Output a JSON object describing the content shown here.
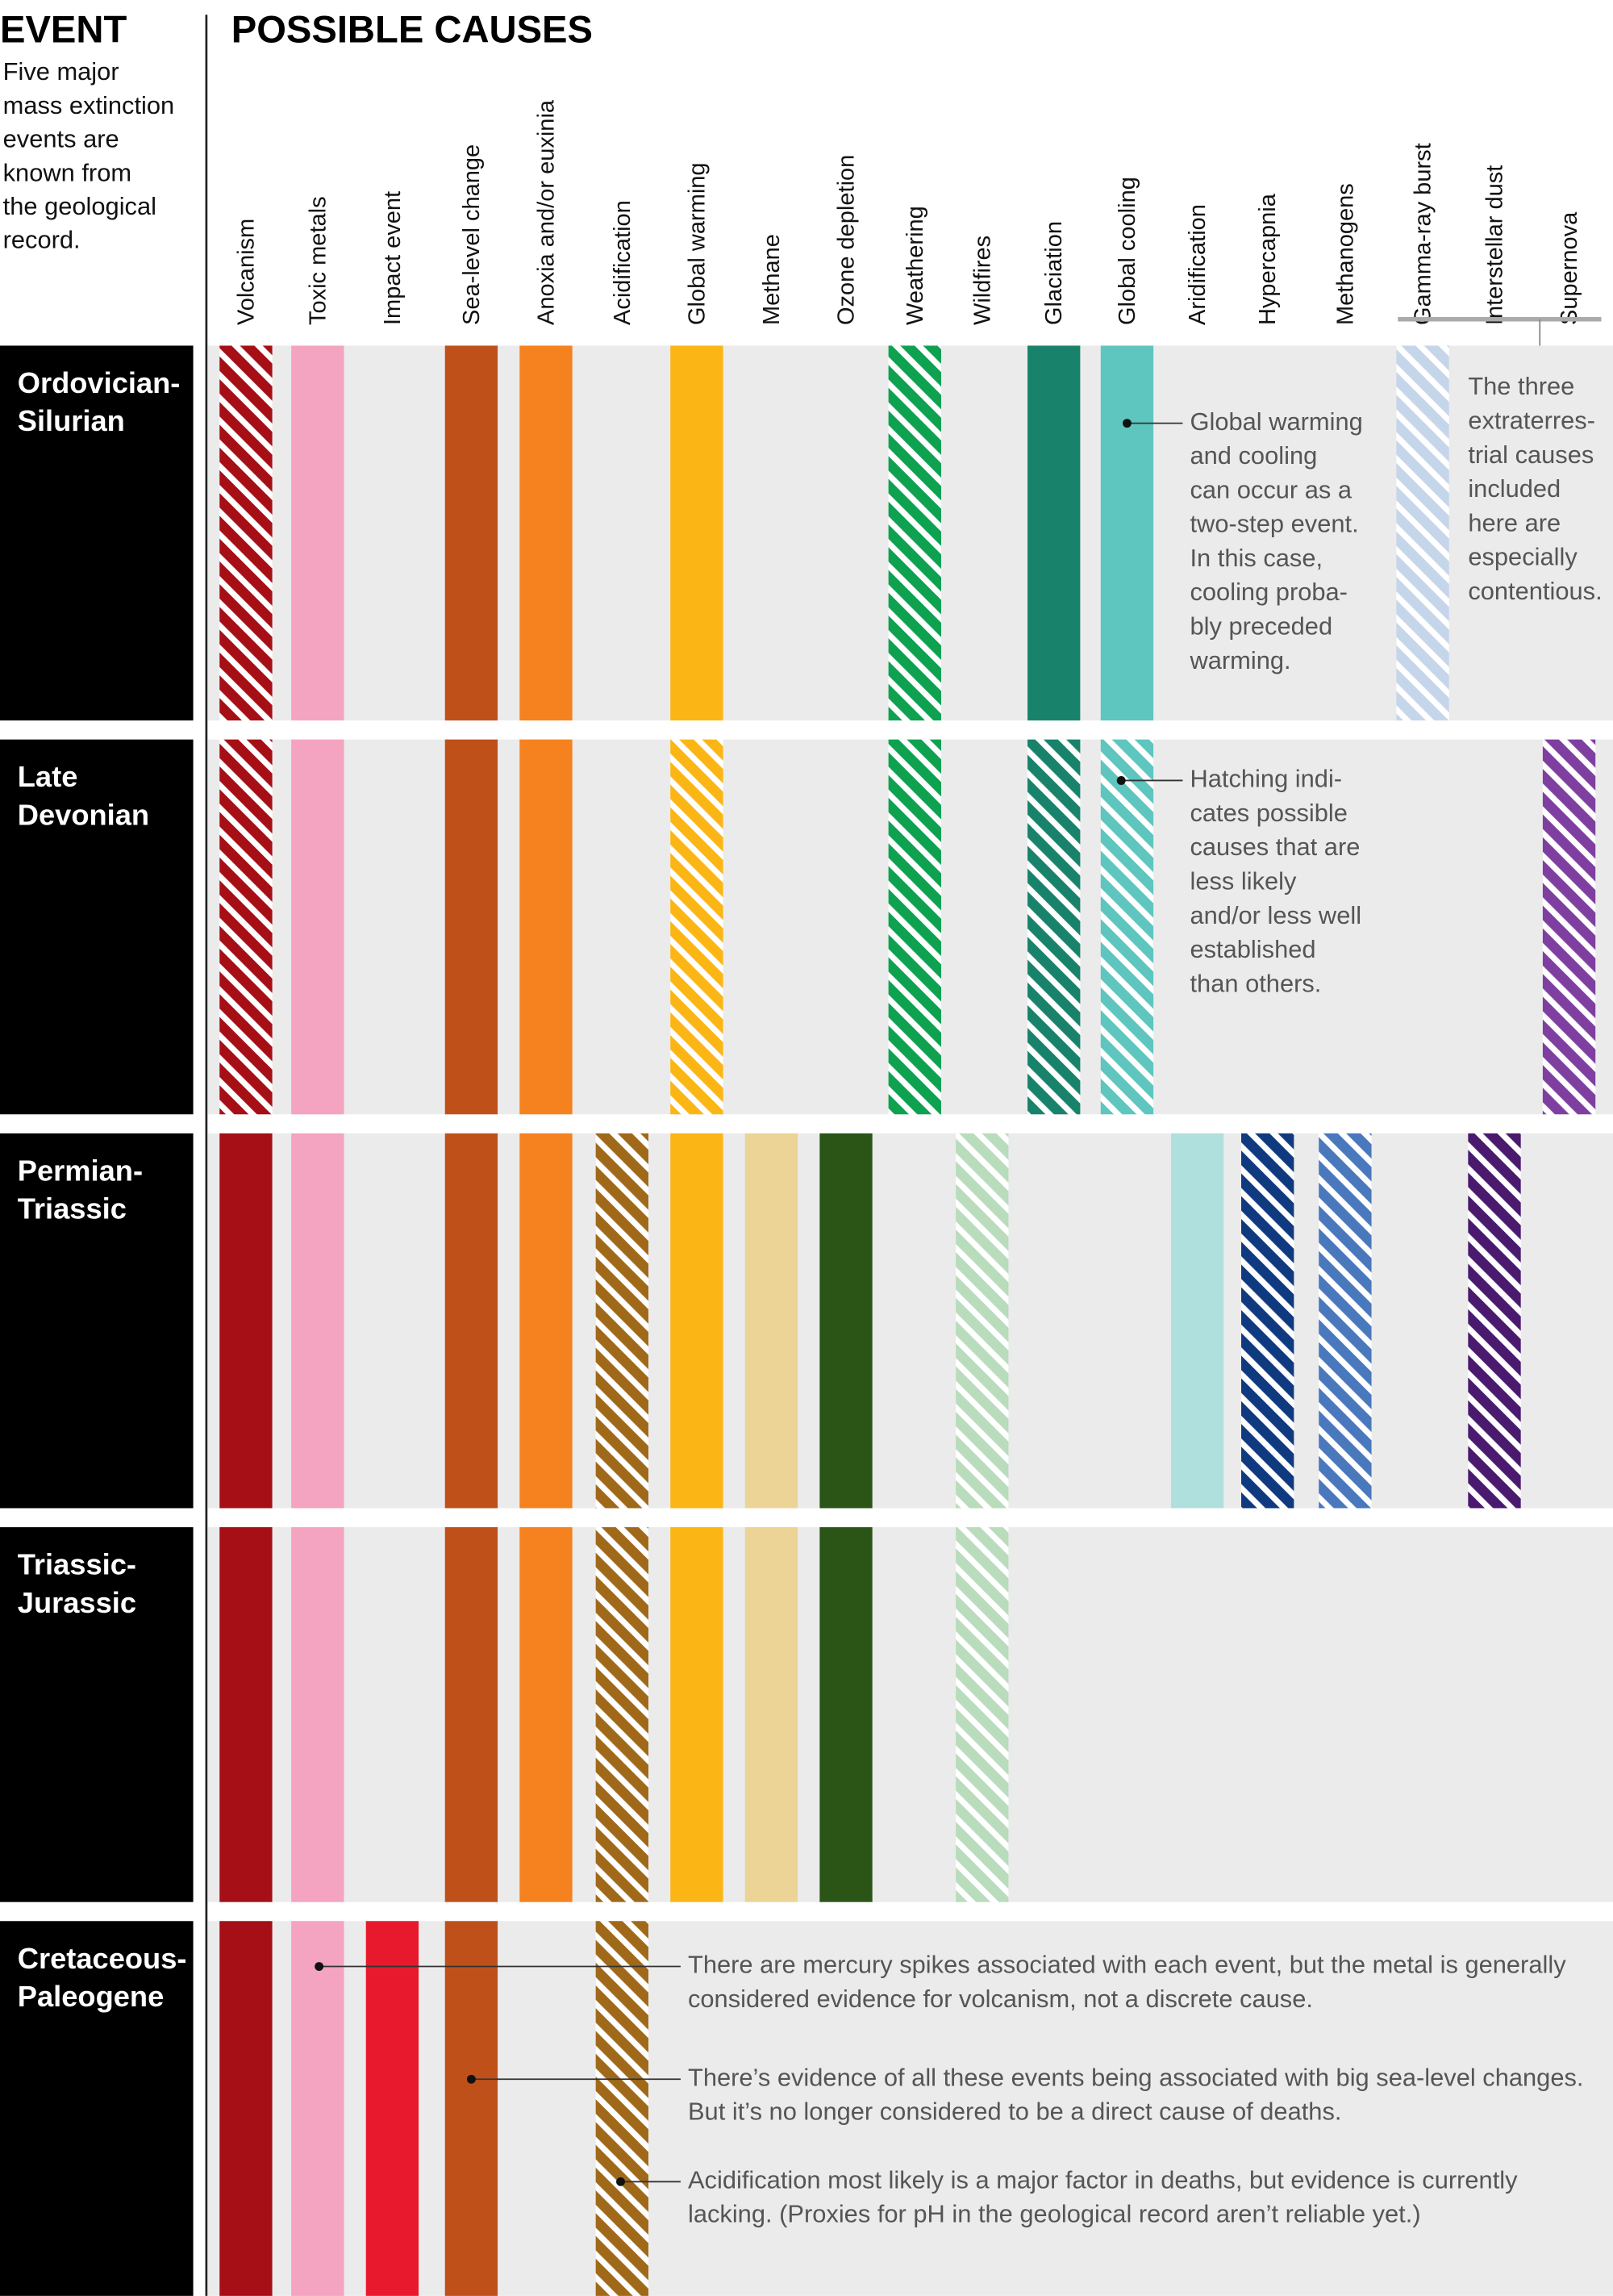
{
  "header": {
    "event_title": "EVENT",
    "causes_title": "POSSIBLE CAUSES",
    "event_description": [
      "Five major",
      "mass extinction",
      "events are",
      "known from",
      "the geological",
      "record."
    ]
  },
  "causes": [
    {
      "label": "Volcanism",
      "color": "#a50f15"
    },
    {
      "label": "Toxic metals",
      "color": "#f4a3c0"
    },
    {
      "label": "Impact event",
      "color": "#e8192c"
    },
    {
      "label": "Sea-level change",
      "color": "#c0501a"
    },
    {
      "label": "Anoxia and/or euxinia",
      "color": "#f5821f"
    },
    {
      "label": "Acidification",
      "color": "#a0691a"
    },
    {
      "label": "Global warming",
      "color": "#fbb615"
    },
    {
      "label": "Methane",
      "color": "#ebd495"
    },
    {
      "label": "Ozone depletion",
      "color": "#2a5516"
    },
    {
      "label": "Weathering",
      "color": "#0da150"
    },
    {
      "label": "Wildfires",
      "color": "#b9dcbc"
    },
    {
      "label": "Glaciation",
      "color": "#19826a"
    },
    {
      "label": "Global cooling",
      "color": "#5ec5bf"
    },
    {
      "label": "Aridification",
      "color": "#b0e0dd"
    },
    {
      "label": "Hypercapnia",
      "color": "#0f3a80"
    },
    {
      "label": "Methanogens",
      "color": "#4a78bd"
    },
    {
      "label": "Gamma-ray burst",
      "color": "#c6d6ea"
    },
    {
      "label": "Interstellar dust",
      "color": "#4a1a6e"
    },
    {
      "label": "Supernova",
      "color": "#7f3fa0"
    }
  ],
  "extraterrestrial_note": [
    "The three",
    "extraterres-",
    "trial causes",
    "included",
    "here are",
    "especially",
    "contentious."
  ],
  "events": [
    {
      "name": [
        "Ordovician-",
        "Silurian"
      ],
      "status": [
        "hatched",
        "solid",
        null,
        "solid",
        "solid",
        null,
        "solid",
        null,
        null,
        "hatched",
        null,
        "solid",
        "solid",
        null,
        null,
        null,
        "hatched",
        null,
        null
      ],
      "notes": [
        [
          "Global warming",
          "and cooling",
          "can occur as a",
          "two-step event.",
          "In this case,",
          "cooling proba-",
          "bly preceded",
          "warming."
        ]
      ]
    },
    {
      "name": [
        "Late",
        "Devonian"
      ],
      "status": [
        "hatched",
        "solid",
        null,
        "solid",
        "solid",
        null,
        "hatched",
        null,
        null,
        "hatched",
        null,
        "hatched",
        "hatched",
        null,
        null,
        null,
        null,
        null,
        "hatched"
      ],
      "notes": [
        [
          "Hatching indi-",
          "cates possible",
          "causes that are",
          "less likely",
          "and/or less well",
          "established",
          "than others."
        ]
      ]
    },
    {
      "name": [
        "Permian-",
        "Triassic"
      ],
      "status": [
        "solid",
        "solid",
        null,
        "solid",
        "solid",
        "hatched",
        "solid",
        "solid",
        "solid",
        null,
        "hatched",
        null,
        null,
        "solid",
        "hatched",
        "hatched",
        null,
        "hatched",
        null
      ],
      "notes": []
    },
    {
      "name": [
        "Triassic-",
        "Jurassic"
      ],
      "status": [
        "solid",
        "solid",
        null,
        "solid",
        "solid",
        "hatched",
        "solid",
        "solid",
        "solid",
        null,
        "hatched",
        null,
        null,
        null,
        null,
        null,
        null,
        null,
        null
      ],
      "notes": []
    },
    {
      "name": [
        "Cretaceous-",
        "Paleogene"
      ],
      "status": [
        "solid",
        "solid",
        "solid",
        "solid",
        null,
        "hatched",
        null,
        null,
        null,
        null,
        null,
        null,
        null,
        null,
        null,
        null,
        null,
        null,
        null
      ],
      "notes": [
        [
          "There are mercury spikes associated with each event, but the metal is generally",
          "considered evidence for volcanism, not a discrete cause."
        ],
        [
          "There’s evidence of all these events being associated with big sea-level changes.",
          "But it’s no longer considered to be a direct cause of deaths."
        ],
        [
          "Acidification most likely is a major factor in deaths, but evidence is currently",
          "lacking. (Proxies for pH in the geological record aren’t reliable yet.)"
        ]
      ]
    }
  ]
}
